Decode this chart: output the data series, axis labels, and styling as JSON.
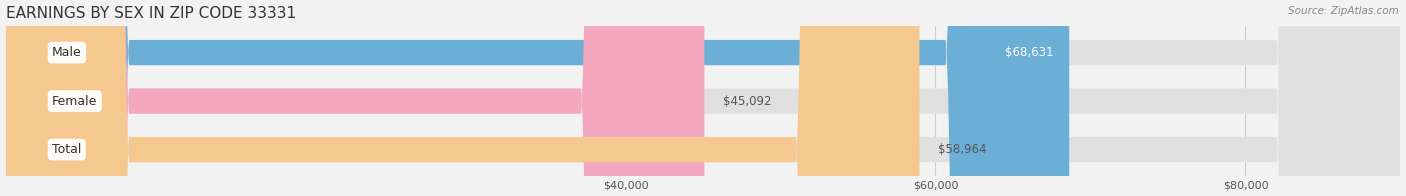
{
  "title": "EARNINGS BY SEX IN ZIP CODE 33331",
  "source": "Source: ZipAtlas.com",
  "categories": [
    "Male",
    "Female",
    "Total"
  ],
  "values": [
    68631,
    45092,
    58964
  ],
  "bar_colors": [
    "#6baed6",
    "#f4a8c0",
    "#f5c890"
  ],
  "bar_labels": [
    "$68,631",
    "$45,092",
    "$58,964"
  ],
  "label_inside": [
    true,
    false,
    false
  ],
  "xticks": [
    40000,
    60000,
    80000
  ],
  "xtick_labels": [
    "$40,000",
    "$60,000",
    "$80,000"
  ],
  "xmin": 0,
  "xmax": 90000,
  "background_color": "#f2f2f2",
  "bar_bg_color": "#e0e0e0",
  "title_fontsize": 11,
  "label_fontsize": 8.5,
  "cat_fontsize": 9,
  "bar_height": 0.52
}
